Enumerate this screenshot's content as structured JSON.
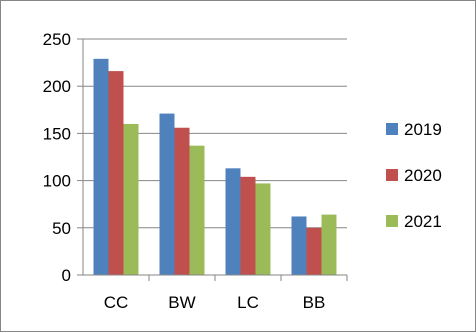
{
  "chart_data": {
    "type": "bar",
    "categories": [
      "CC",
      "BW",
      "LC",
      "BB"
    ],
    "series": [
      {
        "name": "2019",
        "values": [
          229,
          171,
          113,
          62
        ],
        "color": "#4F81BD"
      },
      {
        "name": "2020",
        "values": [
          216,
          156,
          104,
          50
        ],
        "color": "#C0504D"
      },
      {
        "name": "2021",
        "values": [
          160,
          137,
          97,
          64
        ],
        "color": "#9BBB59"
      }
    ],
    "title": "",
    "xlabel": "",
    "ylabel": "",
    "ylim": [
      0,
      250
    ],
    "yticks": [
      0,
      50,
      100,
      150,
      200,
      250
    ],
    "grid": true,
    "legend": "right"
  }
}
